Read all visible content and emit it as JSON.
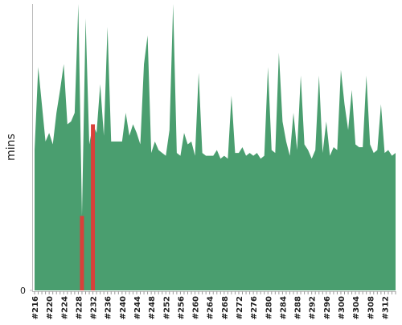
{
  "chart_data": {
    "type": "area",
    "y_label": "mins",
    "categories": [
      "#216",
      null,
      null,
      null,
      "#220",
      null,
      null,
      null,
      "#224",
      null,
      null,
      null,
      "#228",
      null,
      null,
      null,
      "#232",
      null,
      null,
      null,
      "#236",
      null,
      null,
      null,
      "#240",
      null,
      null,
      null,
      "#244",
      null,
      null,
      null,
      "#248",
      null,
      null,
      null,
      "#252",
      null,
      null,
      null,
      "#256",
      null,
      null,
      null,
      "#260",
      null,
      null,
      null,
      "#264",
      null,
      null,
      null,
      "#268",
      null,
      null,
      null,
      "#272",
      null,
      null,
      null,
      "#276",
      null,
      null,
      null,
      "#280",
      null,
      null,
      null,
      "#284",
      null,
      null,
      null,
      "#288",
      null,
      null,
      null,
      "#292",
      null,
      null,
      null,
      "#296",
      null,
      null,
      null,
      "#300",
      null,
      null,
      null,
      "#304",
      null,
      null,
      null,
      "#308",
      null,
      null,
      null,
      "#312",
      null,
      null,
      null
    ],
    "values": [
      49,
      78,
      65,
      52,
      55,
      51,
      62,
      70,
      79,
      58,
      59,
      62,
      100,
      26,
      95,
      51,
      58,
      55,
      72,
      54,
      92,
      52,
      52,
      52,
      52,
      62,
      54,
      58,
      55,
      51,
      79,
      89,
      48,
      52,
      49,
      48,
      47,
      56,
      100,
      48,
      47,
      55,
      51,
      52,
      47,
      76,
      48,
      47,
      47,
      47,
      49,
      46,
      47,
      46,
      68,
      48,
      48,
      50,
      47,
      48,
      47,
      48,
      46,
      47,
      78,
      49,
      48,
      83,
      59,
      52,
      47,
      62,
      49,
      75,
      51,
      49,
      46,
      49,
      75,
      48,
      59,
      47,
      50,
      49,
      77,
      65,
      56,
      70,
      51,
      50,
      50,
      75,
      51,
      48,
      49,
      65,
      48,
      49,
      47,
      48
    ],
    "color": "#4a9e6f",
    "point_colors": {
      "13": "#d9403a",
      "16": "#d9403a"
    },
    "ylim": [
      0,
      100
    ],
    "yticks": [
      0
    ]
  }
}
